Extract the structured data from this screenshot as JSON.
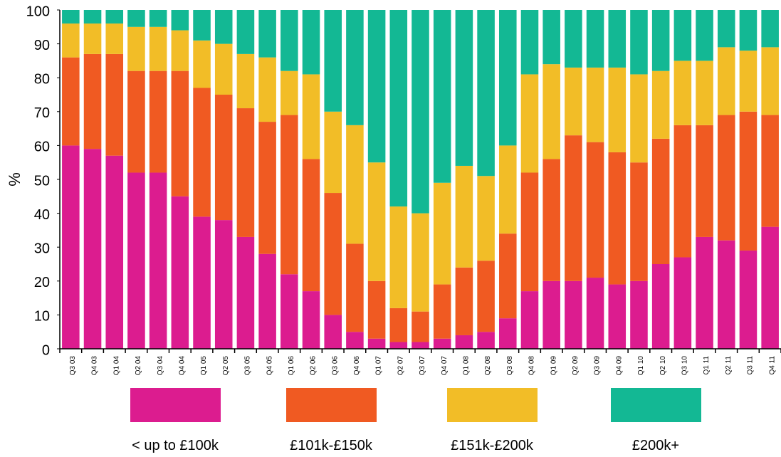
{
  "chart_data": {
    "type": "stacked_bar",
    "ylabel": "%",
    "categories": [
      "Q3 03",
      "Q4 03",
      "Q1 04",
      "Q2 04",
      "Q3 04",
      "Q4 04",
      "Q1 05",
      "Q2 05",
      "Q3 05",
      "Q4 05",
      "Q1 06",
      "Q2 06",
      "Q3 06",
      "Q4 06",
      "Q1 07",
      "Q2 07",
      "Q3 07",
      "Q4 07",
      "Q1 08",
      "Q2 08",
      "Q3 08",
      "Q4 08",
      "Q1 09",
      "Q2 09",
      "Q3 09",
      "Q4 09",
      "Q1 10",
      "Q2 10",
      "Q3 10",
      "Q1 11",
      "Q2 11",
      "Q3 11",
      "Q4 11"
    ],
    "series": [
      {
        "name": "< up to £100k",
        "color": "#dc1c8f",
        "values": [
          60,
          59,
          57,
          52,
          52,
          45,
          39,
          38,
          33,
          28,
          22,
          17,
          10,
          5,
          3,
          2,
          2,
          3,
          4,
          5,
          9,
          17,
          20,
          20,
          21,
          19,
          20,
          25,
          27,
          33,
          32,
          29,
          36
        ]
      },
      {
        "name": "£101k-£150k",
        "color": "#f05a22",
        "values": [
          26,
          28,
          30,
          30,
          30,
          37,
          38,
          37,
          38,
          39,
          47,
          39,
          36,
          26,
          17,
          10,
          9,
          16,
          20,
          21,
          25,
          35,
          36,
          43,
          40,
          39,
          35,
          37,
          39,
          33,
          37,
          41,
          33
        ]
      },
      {
        "name": "£151k-£200k",
        "color": "#f2bd27",
        "values": [
          10,
          9,
          9,
          13,
          13,
          12,
          14,
          15,
          16,
          19,
          13,
          25,
          24,
          35,
          35,
          30,
          29,
          30,
          30,
          25,
          26,
          29,
          28,
          20,
          22,
          25,
          26,
          20,
          19,
          19,
          20,
          18,
          20
        ]
      },
      {
        "name": "£200k+",
        "color": "#13b894",
        "values": [
          4,
          4,
          4,
          5,
          5,
          6,
          9,
          10,
          13,
          14,
          18,
          19,
          30,
          34,
          45,
          58,
          60,
          51,
          46,
          49,
          40,
          19,
          16,
          17,
          17,
          17,
          19,
          18,
          15,
          15,
          11,
          12,
          11
        ]
      }
    ],
    "ylim": [
      0,
      100
    ],
    "yticks": [
      0,
      10,
      20,
      30,
      40,
      50,
      60,
      70,
      80,
      90,
      100
    ],
    "grid": false
  }
}
